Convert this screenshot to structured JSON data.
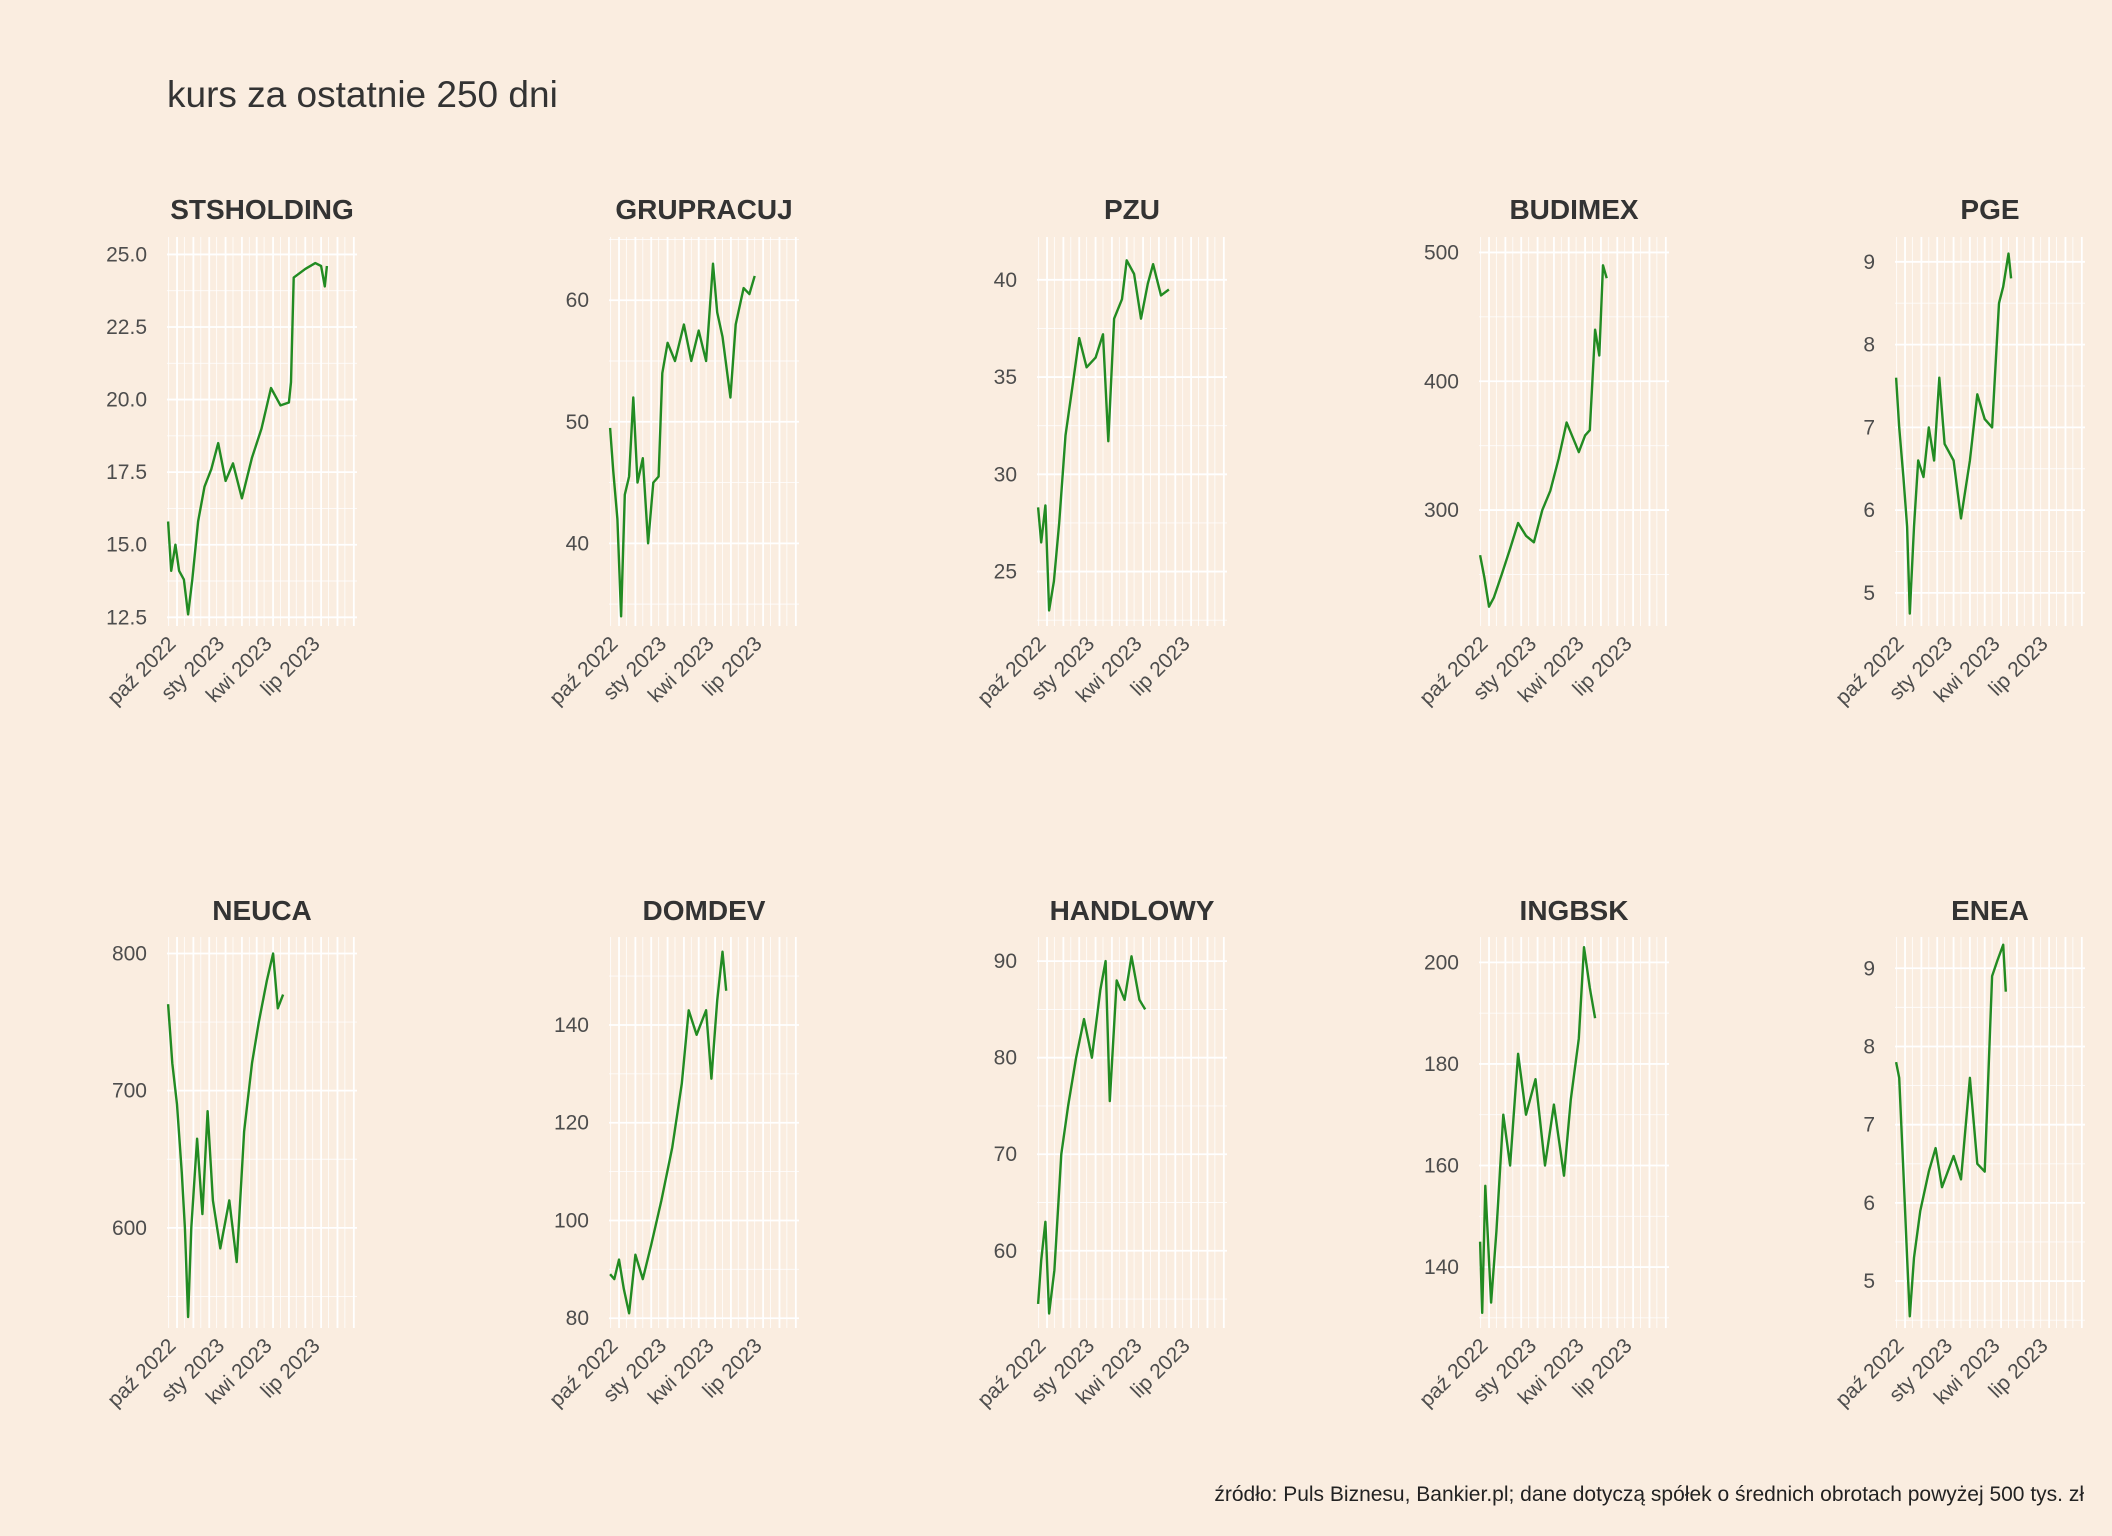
{
  "title": "kurs za ostatnie 250 dni",
  "caption": "źródło: Puls Biznesu, Bankier.pl; dane dotyczą spółek o średnich obrotach powyżej 500 tys. zł",
  "colors": {
    "background": "#FAEDE0",
    "line": "#228B22",
    "grid": "#FFFFFF"
  },
  "x_axis": {
    "type": "date",
    "range": [
      "2022-09-12",
      "2023-09-07"
    ],
    "tick_dates": [
      "2022-10-01",
      "2023-01-01",
      "2023-04-01",
      "2023-07-01"
    ],
    "tick_labels": [
      "paź 2022",
      "sty 2023",
      "kwi 2023",
      "lip 2023"
    ]
  },
  "chart_data": [
    {
      "type": "line",
      "title": "STSHOLDING",
      "ylim": [
        12.2,
        25.6
      ],
      "ticks": [
        12.5,
        15.0,
        17.5,
        20.0,
        22.5,
        25.0
      ],
      "decimals": 1,
      "series": [
        {
          "points": [
            [
              "2022-09-14",
              15.8
            ],
            [
              "2022-09-20",
              14.1
            ],
            [
              "2022-09-28",
              15.0
            ],
            [
              "2022-10-05",
              14.1
            ],
            [
              "2022-10-14",
              13.8
            ],
            [
              "2022-10-22",
              12.6
            ],
            [
              "2022-10-30",
              13.8
            ],
            [
              "2022-11-10",
              15.8
            ],
            [
              "2022-11-22",
              17.0
            ],
            [
              "2022-12-05",
              17.6
            ],
            [
              "2022-12-18",
              18.5
            ],
            [
              "2023-01-01",
              17.2
            ],
            [
              "2023-01-15",
              17.8
            ],
            [
              "2023-02-01",
              16.6
            ],
            [
              "2023-02-20",
              18.0
            ],
            [
              "2023-03-10",
              19.0
            ],
            [
              "2023-03-28",
              20.4
            ],
            [
              "2023-04-15",
              19.8
            ],
            [
              "2023-05-01",
              19.9
            ],
            [
              "2023-05-05",
              20.6
            ],
            [
              "2023-05-10",
              24.2
            ],
            [
              "2023-06-01",
              24.5
            ],
            [
              "2023-06-20",
              24.7
            ],
            [
              "2023-07-01",
              24.6
            ],
            [
              "2023-07-08",
              23.9
            ],
            [
              "2023-07-12",
              24.6
            ]
          ]
        }
      ]
    },
    {
      "type": "line",
      "title": "GRUPRACUJ",
      "ylim": [
        33.2,
        65.2
      ],
      "ticks": [
        40,
        50,
        60
      ],
      "decimals": 0,
      "series": [
        {
          "points": [
            [
              "2022-09-14",
              49.5
            ],
            [
              "2022-09-20",
              46.0
            ],
            [
              "2022-09-28",
              42.0
            ],
            [
              "2022-10-05",
              34.0
            ],
            [
              "2022-10-12",
              44.0
            ],
            [
              "2022-10-20",
              45.5
            ],
            [
              "2022-10-28",
              52.0
            ],
            [
              "2022-11-05",
              45.0
            ],
            [
              "2022-11-15",
              47.0
            ],
            [
              "2022-11-25",
              40.0
            ],
            [
              "2022-12-05",
              45.0
            ],
            [
              "2022-12-15",
              45.5
            ],
            [
              "2022-12-22",
              54.0
            ],
            [
              "2023-01-01",
              56.5
            ],
            [
              "2023-01-15",
              55.0
            ],
            [
              "2023-02-01",
              58.0
            ],
            [
              "2023-02-15",
              55.0
            ],
            [
              "2023-03-01",
              57.5
            ],
            [
              "2023-03-15",
              55.0
            ],
            [
              "2023-03-28",
              63.0
            ],
            [
              "2023-04-05",
              59.0
            ],
            [
              "2023-04-15",
              57.0
            ],
            [
              "2023-04-30",
              52.0
            ],
            [
              "2023-05-10",
              58.0
            ],
            [
              "2023-05-25",
              61.0
            ],
            [
              "2023-06-05",
              60.5
            ],
            [
              "2023-06-15",
              62.0
            ]
          ]
        }
      ]
    },
    {
      "type": "line",
      "title": "PZU",
      "ylim": [
        22.2,
        42.2
      ],
      "ticks": [
        25,
        30,
        35,
        40
      ],
      "decimals": 0,
      "series": [
        {
          "points": [
            [
              "2022-09-14",
              28.3
            ],
            [
              "2022-09-20",
              26.5
            ],
            [
              "2022-09-28",
              28.4
            ],
            [
              "2022-10-05",
              23.0
            ],
            [
              "2022-10-14",
              24.5
            ],
            [
              "2022-10-24",
              27.5
            ],
            [
              "2022-11-05",
              32.0
            ],
            [
              "2022-11-18",
              34.5
            ],
            [
              "2022-12-01",
              37.0
            ],
            [
              "2022-12-15",
              35.5
            ],
            [
              "2023-01-01",
              36.0
            ],
            [
              "2023-01-15",
              37.2
            ],
            [
              "2023-01-25",
              31.7
            ],
            [
              "2023-02-05",
              38.0
            ],
            [
              "2023-02-20",
              39.0
            ],
            [
              "2023-03-01",
              41.0
            ],
            [
              "2023-03-15",
              40.3
            ],
            [
              "2023-03-28",
              38.0
            ],
            [
              "2023-04-10",
              39.8
            ],
            [
              "2023-04-20",
              40.8
            ],
            [
              "2023-05-05",
              39.2
            ],
            [
              "2023-05-20",
              39.5
            ]
          ]
        }
      ]
    },
    {
      "type": "line",
      "title": "BUDIMEX",
      "ylim": [
        210,
        512
      ],
      "ticks": [
        300,
        400,
        500
      ],
      "decimals": 0,
      "series": [
        {
          "points": [
            [
              "2022-09-14",
              265
            ],
            [
              "2022-09-22",
              248
            ],
            [
              "2022-10-01",
              225
            ],
            [
              "2022-10-10",
              232
            ],
            [
              "2022-10-25",
              250
            ],
            [
              "2022-11-10",
              270
            ],
            [
              "2022-11-25",
              290
            ],
            [
              "2022-12-10",
              280
            ],
            [
              "2022-12-25",
              275
            ],
            [
              "2023-01-10",
              300
            ],
            [
              "2023-01-25",
              315
            ],
            [
              "2023-02-10",
              340
            ],
            [
              "2023-02-25",
              368
            ],
            [
              "2023-03-10",
              355
            ],
            [
              "2023-03-20",
              345
            ],
            [
              "2023-04-01",
              358
            ],
            [
              "2023-04-10",
              362
            ],
            [
              "2023-04-20",
              440
            ],
            [
              "2023-04-28",
              420
            ],
            [
              "2023-05-05",
              490
            ],
            [
              "2023-05-12",
              480
            ]
          ]
        }
      ]
    },
    {
      "type": "line",
      "title": "PGE",
      "ylim": [
        4.6,
        9.3
      ],
      "ticks": [
        5,
        6,
        7,
        8,
        9
      ],
      "decimals": 0,
      "series": [
        {
          "points": [
            [
              "2022-09-14",
              7.6
            ],
            [
              "2022-09-20",
              7.0
            ],
            [
              "2022-09-28",
              6.4
            ],
            [
              "2022-10-05",
              5.8
            ],
            [
              "2022-10-10",
              4.75
            ],
            [
              "2022-10-18",
              5.8
            ],
            [
              "2022-10-26",
              6.6
            ],
            [
              "2022-11-05",
              6.4
            ],
            [
              "2022-11-15",
              7.0
            ],
            [
              "2022-11-25",
              6.6
            ],
            [
              "2022-12-05",
              7.6
            ],
            [
              "2022-12-15",
              6.8
            ],
            [
              "2023-01-01",
              6.6
            ],
            [
              "2023-01-15",
              5.9
            ],
            [
              "2023-02-01",
              6.6
            ],
            [
              "2023-02-15",
              7.4
            ],
            [
              "2023-03-01",
              7.1
            ],
            [
              "2023-03-15",
              7.0
            ],
            [
              "2023-03-28",
              8.5
            ],
            [
              "2023-04-05",
              8.7
            ],
            [
              "2023-04-15",
              9.1
            ],
            [
              "2023-04-20",
              8.8
            ]
          ]
        }
      ]
    },
    {
      "type": "line",
      "title": "NEUCA",
      "ylim": [
        527,
        812
      ],
      "ticks": [
        600,
        700,
        800
      ],
      "decimals": 0,
      "series": [
        {
          "points": [
            [
              "2022-09-14",
              763
            ],
            [
              "2022-09-22",
              720
            ],
            [
              "2022-10-01",
              690
            ],
            [
              "2022-10-10",
              640
            ],
            [
              "2022-10-16",
              600
            ],
            [
              "2022-10-22",
              535
            ],
            [
              "2022-10-28",
              600
            ],
            [
              "2022-11-08",
              665
            ],
            [
              "2022-11-18",
              610
            ],
            [
              "2022-11-28",
              685
            ],
            [
              "2022-12-08",
              620
            ],
            [
              "2022-12-22",
              585
            ],
            [
              "2023-01-08",
              620
            ],
            [
              "2023-01-22",
              575
            ],
            [
              "2023-02-05",
              670
            ],
            [
              "2023-02-20",
              720
            ],
            [
              "2023-03-05",
              750
            ],
            [
              "2023-03-20",
              780
            ],
            [
              "2023-04-01",
              800
            ],
            [
              "2023-04-10",
              760
            ],
            [
              "2023-04-20",
              770
            ]
          ]
        }
      ]
    },
    {
      "type": "line",
      "title": "DOMDEV",
      "ylim": [
        78,
        158
      ],
      "ticks": [
        80,
        100,
        120,
        140
      ],
      "decimals": 0,
      "series": [
        {
          "points": [
            [
              "2022-09-14",
              89
            ],
            [
              "2022-09-22",
              88
            ],
            [
              "2022-10-01",
              92
            ],
            [
              "2022-10-10",
              86
            ],
            [
              "2022-10-20",
              81
            ],
            [
              "2022-11-01",
              93
            ],
            [
              "2022-11-15",
              88
            ],
            [
              "2022-12-01",
              95
            ],
            [
              "2022-12-20",
              104
            ],
            [
              "2023-01-10",
              115
            ],
            [
              "2023-01-28",
              128
            ],
            [
              "2023-02-10",
              143
            ],
            [
              "2023-02-25",
              138
            ],
            [
              "2023-03-15",
              143
            ],
            [
              "2023-03-25",
              129
            ],
            [
              "2023-04-05",
              145
            ],
            [
              "2023-04-15",
              155
            ],
            [
              "2023-04-22",
              147
            ]
          ]
        }
      ]
    },
    {
      "type": "line",
      "title": "HANDLOWY",
      "ylim": [
        52,
        92.5
      ],
      "ticks": [
        60,
        70,
        80,
        90
      ],
      "decimals": 0,
      "series": [
        {
          "points": [
            [
              "2022-09-14",
              54.5
            ],
            [
              "2022-09-20",
              59.0
            ],
            [
              "2022-09-28",
              63.0
            ],
            [
              "2022-10-05",
              53.5
            ],
            [
              "2022-10-15",
              58.0
            ],
            [
              "2022-10-28",
              70.0
            ],
            [
              "2022-11-10",
              75.0
            ],
            [
              "2022-11-25",
              80.0
            ],
            [
              "2022-12-10",
              84.0
            ],
            [
              "2022-12-25",
              80.0
            ],
            [
              "2023-01-10",
              87.0
            ],
            [
              "2023-01-20",
              90.0
            ],
            [
              "2023-01-28",
              75.5
            ],
            [
              "2023-02-10",
              88.0
            ],
            [
              "2023-02-25",
              86.0
            ],
            [
              "2023-03-10",
              90.5
            ],
            [
              "2023-03-25",
              86.0
            ],
            [
              "2023-04-05",
              85.0
            ]
          ]
        }
      ]
    },
    {
      "type": "line",
      "title": "INGBSK",
      "ylim": [
        128,
        205
      ],
      "ticks": [
        140,
        160,
        180,
        200
      ],
      "decimals": 0,
      "series": [
        {
          "points": [
            [
              "2022-09-14",
              145
            ],
            [
              "2022-09-18",
              131
            ],
            [
              "2022-09-24",
              156
            ],
            [
              "2022-10-05",
              133
            ],
            [
              "2022-10-15",
              147
            ],
            [
              "2022-10-28",
              170
            ],
            [
              "2022-11-10",
              160
            ],
            [
              "2022-11-25",
              182
            ],
            [
              "2022-12-10",
              170
            ],
            [
              "2022-12-28",
              177
            ],
            [
              "2023-01-15",
              160
            ],
            [
              "2023-02-01",
              172
            ],
            [
              "2023-02-20",
              158
            ],
            [
              "2023-03-05",
              173
            ],
            [
              "2023-03-20",
              185
            ],
            [
              "2023-03-30",
              203
            ],
            [
              "2023-04-10",
              195
            ],
            [
              "2023-04-20",
              189
            ]
          ]
        }
      ]
    },
    {
      "type": "line",
      "title": "ENEA",
      "ylim": [
        4.4,
        9.4
      ],
      "ticks": [
        5,
        6,
        7,
        8,
        9
      ],
      "decimals": 0,
      "series": [
        {
          "points": [
            [
              "2022-09-14",
              7.8
            ],
            [
              "2022-09-20",
              7.6
            ],
            [
              "2022-09-28",
              6.4
            ],
            [
              "2022-10-05",
              5.3
            ],
            [
              "2022-10-10",
              4.55
            ],
            [
              "2022-10-18",
              5.3
            ],
            [
              "2022-10-30",
              5.9
            ],
            [
              "2022-11-15",
              6.4
            ],
            [
              "2022-11-28",
              6.7
            ],
            [
              "2022-12-10",
              6.2
            ],
            [
              "2023-01-01",
              6.6
            ],
            [
              "2023-01-15",
              6.3
            ],
            [
              "2023-02-01",
              7.6
            ],
            [
              "2023-02-15",
              6.5
            ],
            [
              "2023-03-01",
              6.4
            ],
            [
              "2023-03-15",
              8.9
            ],
            [
              "2023-03-25",
              9.1
            ],
            [
              "2023-04-05",
              9.3
            ],
            [
              "2023-04-10",
              8.7
            ]
          ]
        }
      ]
    }
  ]
}
